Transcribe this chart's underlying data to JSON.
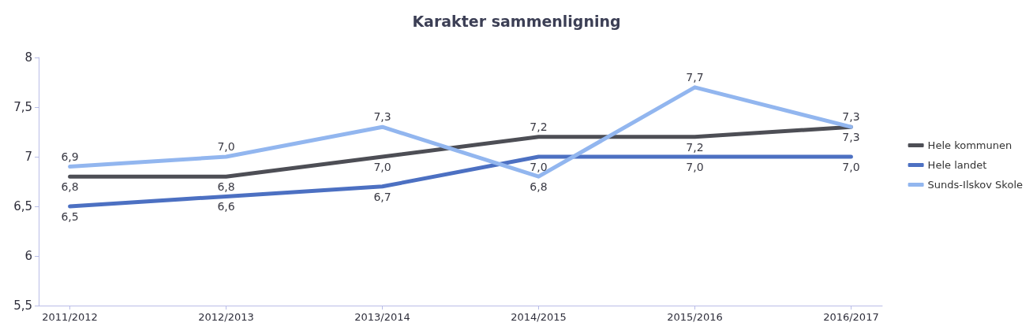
{
  "chart_data": {
    "type": "line",
    "title": "Karakter sammenligning",
    "categories": [
      "2011/2012",
      "2012/2013",
      "2013/2014",
      "2014/2015",
      "2015/2016",
      "2016/2017"
    ],
    "series": [
      {
        "name": "Hele kommunen",
        "color": "#4d4e55",
        "values": [
          6.8,
          6.8,
          7.0,
          7.2,
          7.2,
          7.3
        ],
        "value_labels": [
          "6,8",
          "6,8",
          "7,0",
          "7,2",
          "7,2",
          "7,3"
        ]
      },
      {
        "name": "Hele landet",
        "color": "#4c70c2",
        "values": [
          6.5,
          6.6,
          6.7,
          7.0,
          7.0,
          7.0
        ],
        "value_labels": [
          "6,5",
          "6,6",
          "6,7",
          "7,0",
          "7,0",
          "7,0"
        ]
      },
      {
        "name": "Sunds-Ilskov Skole",
        "color": "#92b6ef",
        "values": [
          6.9,
          7.0,
          7.3,
          6.8,
          7.7,
          7.3
        ],
        "value_labels": [
          "6,9",
          "7,0",
          "7,3",
          "6,8",
          "7,7",
          "7,3"
        ]
      }
    ],
    "ylim": [
      5.5,
      8
    ],
    "yticks": [
      {
        "value": 5.5,
        "label": "5,5"
      },
      6,
      {
        "value": 6.5,
        "label": "6,5"
      },
      7,
      {
        "value": 7.5,
        "label": "7,5"
      },
      8
    ],
    "grid": false,
    "legend": "right",
    "marker": "none",
    "line_style": "solid"
  }
}
